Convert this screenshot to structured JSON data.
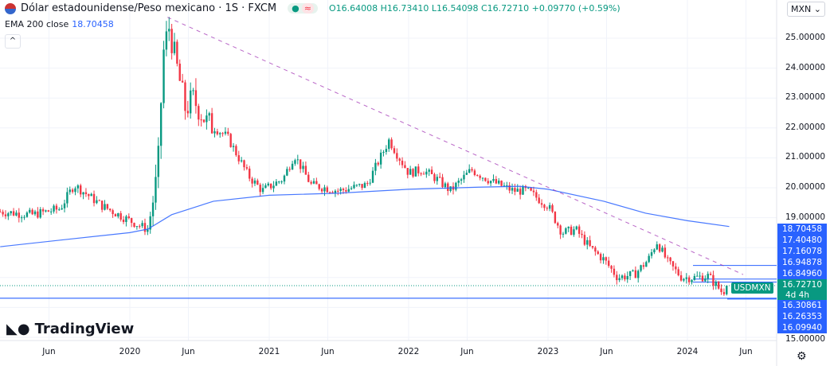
{
  "header": {
    "title": "Dólar estadounidense/Peso mexicano · 1S · FXCM",
    "status_dot": "●",
    "status_icon": "≈",
    "open": "O16.64008",
    "high": "H16.73410",
    "low": "L16.54098",
    "close": "C16.72710",
    "change": "+0.09770 (+0.59%)"
  },
  "indicator": {
    "label": "EMA 200 close",
    "value": "18.70458"
  },
  "currency": "MXN",
  "brand": "TradingView",
  "symbol_tag": "USDMXN",
  "countdown": "4d 4h",
  "price_labels": [
    "18.70458",
    "17.40480",
    "17.16078",
    "16.94878",
    "16.84960",
    "16.72710",
    "16.30861",
    "16.26353",
    "16.09940"
  ],
  "chart_data": {
    "type": "candlestick",
    "interval": "1W",
    "y_ticks": [
      "25.00000",
      "24.00000",
      "23.00000",
      "22.00000",
      "21.00000",
      "20.00000",
      "19.00000",
      "15.00000"
    ],
    "ylim": [
      15,
      25.5
    ],
    "x_ticks": [
      {
        "t": 2019.42,
        "label": "Jun"
      },
      {
        "t": 2020,
        "label": "2020"
      },
      {
        "t": 2020.42,
        "label": "Jun"
      },
      {
        "t": 2021,
        "label": "2021"
      },
      {
        "t": 2021.42,
        "label": "Jun"
      },
      {
        "t": 2022,
        "label": "2022"
      },
      {
        "t": 2022.42,
        "label": "Jun"
      },
      {
        "t": 2023,
        "label": "2023"
      },
      {
        "t": 2023.42,
        "label": "Jun"
      },
      {
        "t": 2024,
        "label": "2024"
      },
      {
        "t": 2024.42,
        "label": "Jun"
      }
    ],
    "price_path": [
      [
        2019.07,
        19.2
      ],
      [
        2019.3,
        19.1
      ],
      [
        2019.5,
        19.3
      ],
      [
        2019.6,
        20.1
      ],
      [
        2019.8,
        19.4
      ],
      [
        2020.0,
        18.9
      ],
      [
        2020.13,
        18.6
      ],
      [
        2020.2,
        20.5
      ],
      [
        2020.24,
        24.5
      ],
      [
        2020.28,
        25.4
      ],
      [
        2020.33,
        24.2
      ],
      [
        2020.4,
        22.6
      ],
      [
        2020.45,
        23.0
      ],
      [
        2020.55,
        22.2
      ],
      [
        2020.7,
        21.7
      ],
      [
        2020.85,
        20.4
      ],
      [
        2020.95,
        19.9
      ],
      [
        2021.1,
        20.3
      ],
      [
        2021.18,
        21.1
      ],
      [
        2021.3,
        20.1
      ],
      [
        2021.5,
        19.9
      ],
      [
        2021.7,
        20.1
      ],
      [
        2021.86,
        21.6
      ],
      [
        2021.92,
        21.1
      ],
      [
        2022.0,
        20.5
      ],
      [
        2022.1,
        20.6
      ],
      [
        2022.2,
        20.3
      ],
      [
        2022.3,
        19.9
      ],
      [
        2022.45,
        20.6
      ],
      [
        2022.6,
        20.2
      ],
      [
        2022.75,
        19.9
      ],
      [
        2022.85,
        19.9
      ],
      [
        2023.0,
        19.4
      ],
      [
        2023.1,
        18.5
      ],
      [
        2023.2,
        18.6
      ],
      [
        2023.3,
        18.0
      ],
      [
        2023.4,
        17.6
      ],
      [
        2023.5,
        17.0
      ],
      [
        2023.62,
        17.1
      ],
      [
        2023.72,
        17.6
      ],
      [
        2023.78,
        18.2
      ],
      [
        2023.86,
        17.5
      ],
      [
        2023.96,
        17.0
      ],
      [
        2024.05,
        17.0
      ],
      [
        2024.15,
        17.05
      ],
      [
        2024.25,
        16.5
      ],
      [
        2024.3,
        16.73
      ]
    ],
    "ema_200": [
      [
        2019.07,
        18.03
      ],
      [
        2019.5,
        18.25
      ],
      [
        2020.0,
        18.5
      ],
      [
        2020.13,
        18.62
      ],
      [
        2020.3,
        19.1
      ],
      [
        2020.6,
        19.55
      ],
      [
        2021.0,
        19.75
      ],
      [
        2021.5,
        19.82
      ],
      [
        2022.0,
        19.95
      ],
      [
        2022.5,
        20.02
      ],
      [
        2022.8,
        20.05
      ],
      [
        2023.0,
        19.95
      ],
      [
        2023.4,
        19.55
      ],
      [
        2023.7,
        19.15
      ],
      [
        2024.0,
        18.9
      ],
      [
        2024.3,
        18.70458
      ]
    ],
    "trendline": [
      [
        2020.27,
        25.7
      ],
      [
        2024.4,
        17.1
      ]
    ],
    "horizontal_levels": [
      16.30861,
      16.7271
    ],
    "short_levels": [
      16.94878,
      16.8496,
      17.4048
    ]
  }
}
